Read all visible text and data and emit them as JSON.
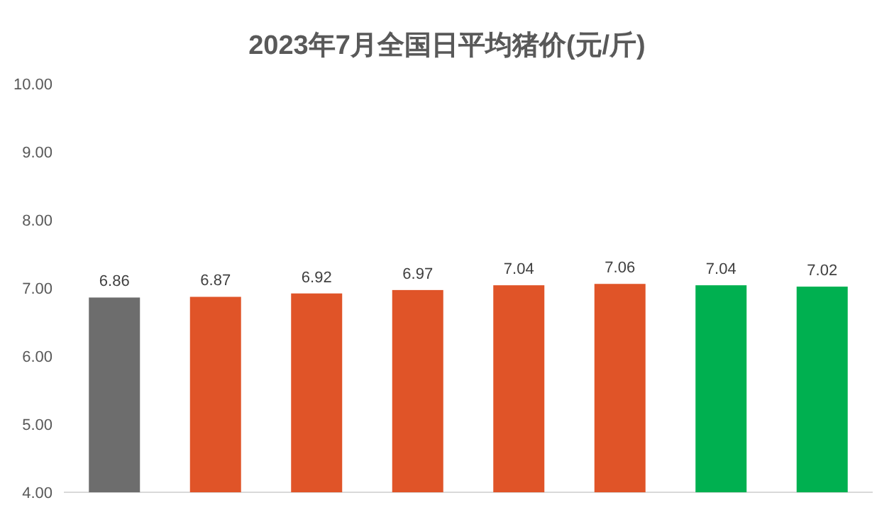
{
  "chart_data": {
    "type": "bar",
    "title": "2023年7月全国日平均猪价(元/斤)",
    "categories": [
      null,
      null,
      null,
      null,
      null,
      null,
      null,
      null
    ],
    "values": [
      6.86,
      6.87,
      6.92,
      6.97,
      7.04,
      7.06,
      7.04,
      7.02
    ],
    "colors": [
      "#6d6d6d",
      "#e05428",
      "#e05428",
      "#e05428",
      "#e05428",
      "#e05428",
      "#00b050",
      "#00b050"
    ],
    "ylim": [
      4,
      10
    ],
    "yticks": [
      {
        "value": 4,
        "label": "4.00"
      },
      {
        "value": 5,
        "label": "5.00"
      },
      {
        "value": 6,
        "label": "6.00"
      },
      {
        "value": 7,
        "label": "7.00"
      },
      {
        "value": 8,
        "label": "8.00"
      },
      {
        "value": 9,
        "label": "9.00"
      },
      {
        "value": 10,
        "label": "10.00"
      }
    ],
    "data_labels": true,
    "grid": false
  }
}
